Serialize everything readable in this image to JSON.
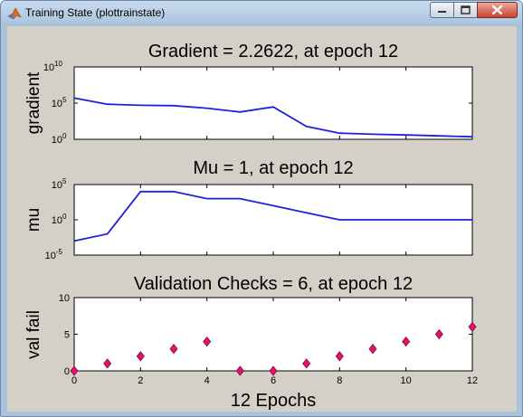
{
  "window": {
    "title": "Training State (plottrainstate)",
    "icons": {
      "app": "matlab-logo-icon",
      "minimize": "minimize-icon",
      "maximize": "maximize-icon",
      "close": "close-icon"
    }
  },
  "xlabel": "12 Epochs",
  "colors": {
    "line": "#1f1fdf",
    "marker_fill": "#e8106e",
    "marker_edge": "#7a0a38",
    "background": "#d4d0c8"
  },
  "chart_data": [
    {
      "type": "line",
      "title": "Gradient = 2.2622, at epoch 12",
      "ylabel": "gradient",
      "yscale": "log",
      "ylim": [
        1,
        10000000000
      ],
      "xlim": [
        0,
        12
      ],
      "yticks": [
        {
          "base": "10",
          "exp": "0"
        },
        {
          "base": "10",
          "exp": "5"
        },
        {
          "base": "10",
          "exp": "10"
        }
      ],
      "x": [
        0,
        1,
        2,
        3,
        4,
        5,
        6,
        7,
        8,
        9,
        10,
        11,
        12
      ],
      "y": [
        500000,
        70000,
        50000,
        45000,
        20000,
        6000,
        30000,
        60,
        7,
        5,
        4,
        3,
        2.2622
      ]
    },
    {
      "type": "line",
      "title": "Mu = 1, at epoch 12",
      "ylabel": "mu",
      "yscale": "log",
      "ylim": [
        1e-05,
        100000
      ],
      "xlim": [
        0,
        12
      ],
      "yticks": [
        {
          "base": "10",
          "exp": "-5"
        },
        {
          "base": "10",
          "exp": "0"
        },
        {
          "base": "10",
          "exp": "5"
        }
      ],
      "x": [
        0,
        1,
        2,
        3,
        4,
        5,
        6,
        7,
        8,
        9,
        10,
        11,
        12
      ],
      "y": [
        0.001,
        0.01,
        10000,
        10000,
        1000,
        1000,
        100,
        10,
        1,
        1,
        1,
        1,
        1
      ]
    },
    {
      "type": "scatter",
      "title": "Validation Checks = 6, at epoch 12",
      "ylabel": "val fail",
      "ylim": [
        0,
        10
      ],
      "xlim": [
        0,
        12
      ],
      "yticks": [
        "0",
        "5",
        "10"
      ],
      "xticks": [
        "0",
        "2",
        "4",
        "6",
        "8",
        "10",
        "12"
      ],
      "x": [
        0,
        1,
        2,
        3,
        4,
        5,
        6,
        7,
        8,
        9,
        10,
        11,
        12
      ],
      "y": [
        0,
        1,
        2,
        3,
        4,
        0,
        0,
        1,
        2,
        3,
        4,
        5,
        6
      ]
    }
  ]
}
